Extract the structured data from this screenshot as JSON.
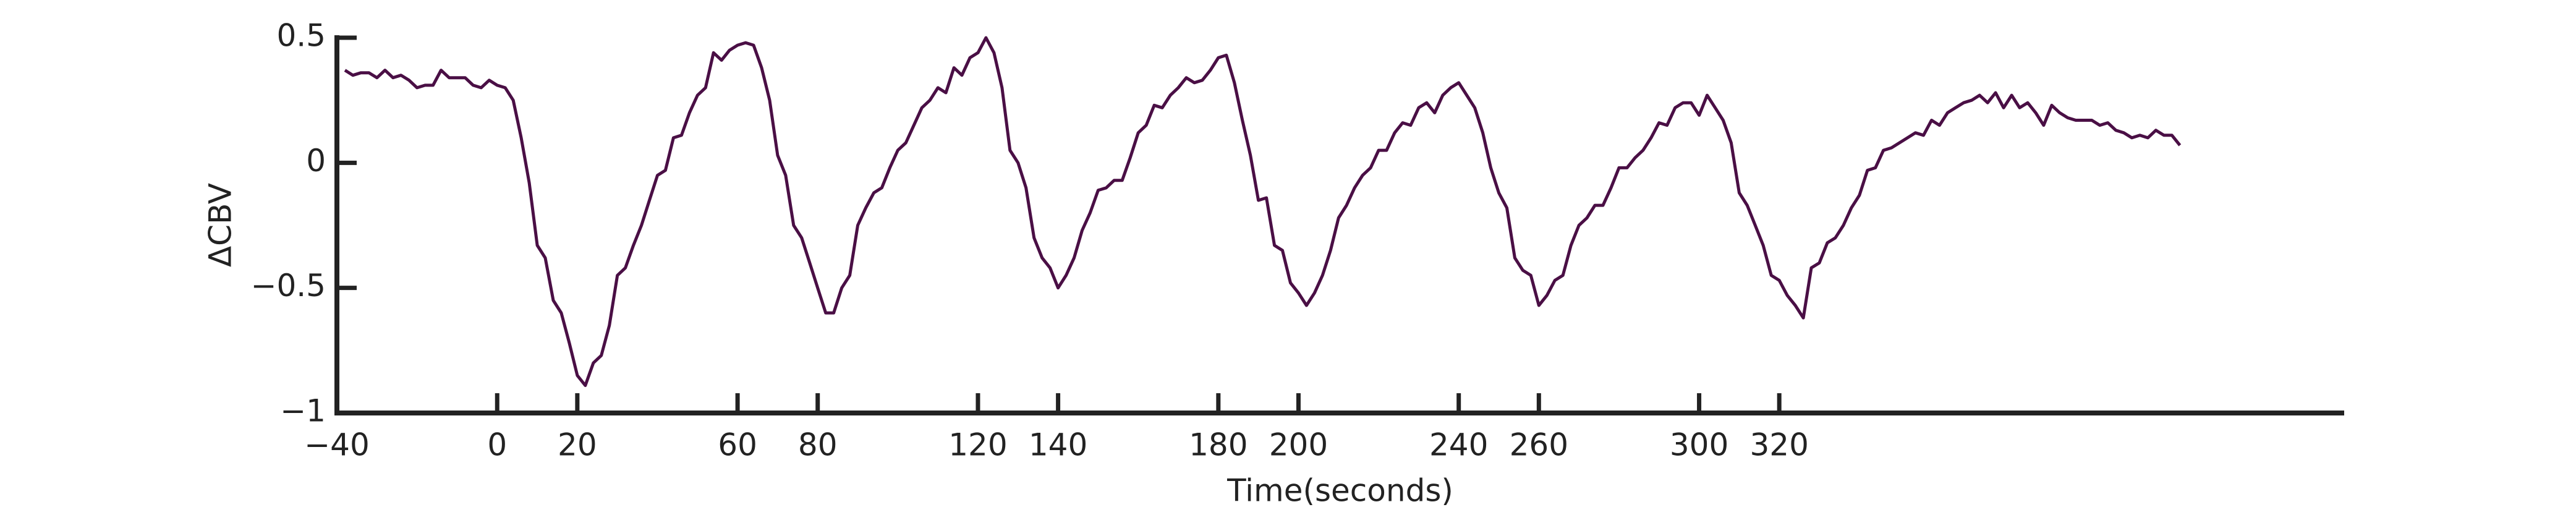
{
  "chart_data": {
    "type": "line",
    "xlabel": "Time(seconds)",
    "ylabel": "ΔCBV",
    "color": "#4a0f45",
    "xlim": [
      -40,
      461
    ],
    "ylim": [
      -1,
      0.5
    ],
    "xticks": [
      {
        "value": -40,
        "label": "−40"
      },
      0,
      20,
      60,
      80,
      120,
      140,
      180,
      200,
      240,
      260,
      300,
      320
    ],
    "yticks": [
      {
        "value": -1,
        "label": "−1"
      },
      {
        "value": -0.5,
        "label": "−0.5"
      },
      0,
      0.5
    ],
    "x": [
      -38,
      -36,
      -34,
      -32,
      -30,
      -28,
      -26,
      -24,
      -22,
      -20,
      -18,
      -16,
      -14,
      -12,
      -10,
      -8,
      -6,
      -4,
      -2,
      0,
      2,
      4,
      6,
      8,
      10,
      12,
      14,
      16,
      18,
      20,
      22,
      24,
      26,
      28,
      30,
      32,
      34,
      36,
      38,
      40,
      42,
      44,
      46,
      48,
      50,
      52,
      54,
      56,
      58,
      60,
      62,
      64,
      66,
      68,
      70,
      72,
      74,
      76,
      78,
      80,
      82,
      84,
      86,
      88,
      90,
      92,
      94,
      96,
      98,
      100,
      102,
      104,
      106,
      108,
      110,
      112,
      114,
      116,
      118,
      120,
      122,
      124,
      126,
      128,
      130,
      132,
      134,
      136,
      138,
      140,
      142,
      144,
      146,
      148,
      150,
      152,
      154,
      156,
      158,
      160,
      162,
      164,
      166,
      168,
      170,
      172,
      174,
      176,
      178,
      180,
      182,
      184,
      186,
      188,
      190,
      192,
      194,
      196,
      198,
      200,
      202,
      204,
      206,
      208,
      210,
      212,
      214,
      216,
      218,
      220,
      222,
      224,
      226,
      228,
      230,
      232,
      234,
      236,
      238,
      240,
      242,
      244,
      246,
      248,
      250,
      252,
      254,
      256,
      258,
      260,
      262,
      264,
      266,
      268,
      270,
      272,
      274,
      276,
      278,
      280,
      282,
      284,
      286,
      288,
      290,
      292,
      294,
      296,
      298,
      300,
      302,
      304,
      306,
      308,
      310,
      312,
      314,
      316,
      318,
      320,
      322,
      324,
      326,
      328,
      330,
      332,
      334,
      336,
      338,
      340,
      342,
      344,
      346,
      348,
      350,
      352,
      354,
      356,
      358,
      360,
      362,
      364,
      366,
      368,
      370,
      372,
      374,
      376,
      378,
      380,
      382,
      384,
      386,
      388,
      390,
      392,
      394,
      396,
      398,
      400,
      402,
      404,
      406,
      408,
      410,
      412,
      414,
      416,
      418,
      420
    ],
    "values": [
      0.37,
      0.35,
      0.36,
      0.36,
      0.34,
      0.37,
      0.34,
      0.35,
      0.33,
      0.3,
      0.31,
      0.31,
      0.37,
      0.34,
      0.34,
      0.34,
      0.31,
      0.3,
      0.33,
      0.31,
      0.3,
      0.25,
      0.1,
      -0.08,
      -0.33,
      -0.38,
      -0.55,
      -0.6,
      -0.72,
      -0.85,
      -0.89,
      -0.8,
      -0.77,
      -0.65,
      -0.45,
      -0.42,
      -0.33,
      -0.25,
      -0.15,
      -0.05,
      -0.03,
      0.1,
      0.11,
      0.2,
      0.27,
      0.3,
      0.44,
      0.41,
      0.45,
      0.47,
      0.48,
      0.47,
      0.38,
      0.25,
      0.03,
      -0.05,
      -0.25,
      -0.3,
      -0.4,
      -0.5,
      -0.6,
      -0.6,
      -0.5,
      -0.45,
      -0.25,
      -0.18,
      -0.12,
      -0.1,
      -0.02,
      0.05,
      0.08,
      0.15,
      0.22,
      0.25,
      0.3,
      0.28,
      0.38,
      0.35,
      0.42,
      0.44,
      0.5,
      0.44,
      0.3,
      0.05,
      0,
      -0.1,
      -0.3,
      -0.38,
      -0.42,
      -0.5,
      -0.45,
      -0.38,
      -0.27,
      -0.2,
      -0.11,
      -0.1,
      -0.07,
      -0.07,
      0.02,
      0.12,
      0.15,
      0.23,
      0.22,
      0.27,
      0.3,
      0.34,
      0.32,
      0.33,
      0.37,
      0.42,
      0.43,
      0.32,
      0.17,
      0.03,
      -0.15,
      -0.14,
      -0.33,
      -0.35,
      -0.48,
      -0.52,
      -0.57,
      -0.52,
      -0.45,
      -0.35,
      -0.22,
      -0.17,
      -0.1,
      -0.05,
      -0.02,
      0.05,
      0.05,
      0.12,
      0.16,
      0.15,
      0.22,
      0.24,
      0.2,
      0.27,
      0.3,
      0.32,
      0.27,
      0.22,
      0.12,
      -0.02,
      -0.12,
      -0.18,
      -0.38,
      -0.43,
      -0.45,
      -0.57,
      -0.53,
      -0.47,
      -0.45,
      -0.33,
      -0.25,
      -0.22,
      -0.17,
      -0.17,
      -0.1,
      -0.02,
      -0.02,
      0.02,
      0.05,
      0.1,
      0.16,
      0.15,
      0.22,
      0.24,
      0.24,
      0.19,
      0.27,
      0.22,
      0.17,
      0.08,
      -0.12,
      -0.17,
      -0.25,
      -0.33,
      -0.45,
      -0.47,
      -0.53,
      -0.57,
      -0.62,
      -0.42,
      -0.4,
      -0.32,
      -0.3,
      -0.25,
      -0.18,
      -0.13,
      -0.03,
      -0.02,
      0.05,
      0.06,
      0.08,
      0.1,
      0.12,
      0.11,
      0.17,
      0.15,
      0.2,
      0.22,
      0.24,
      0.25,
      0.27,
      0.24,
      0.28,
      0.22,
      0.27,
      0.22,
      0.24,
      0.2,
      0.15,
      0.23,
      0.2,
      0.18,
      0.17,
      0.17,
      0.17,
      0.15,
      0.16,
      0.13,
      0.12,
      0.1,
      0.11,
      0.1,
      0.13,
      0.11,
      0.11,
      0.07
    ]
  }
}
